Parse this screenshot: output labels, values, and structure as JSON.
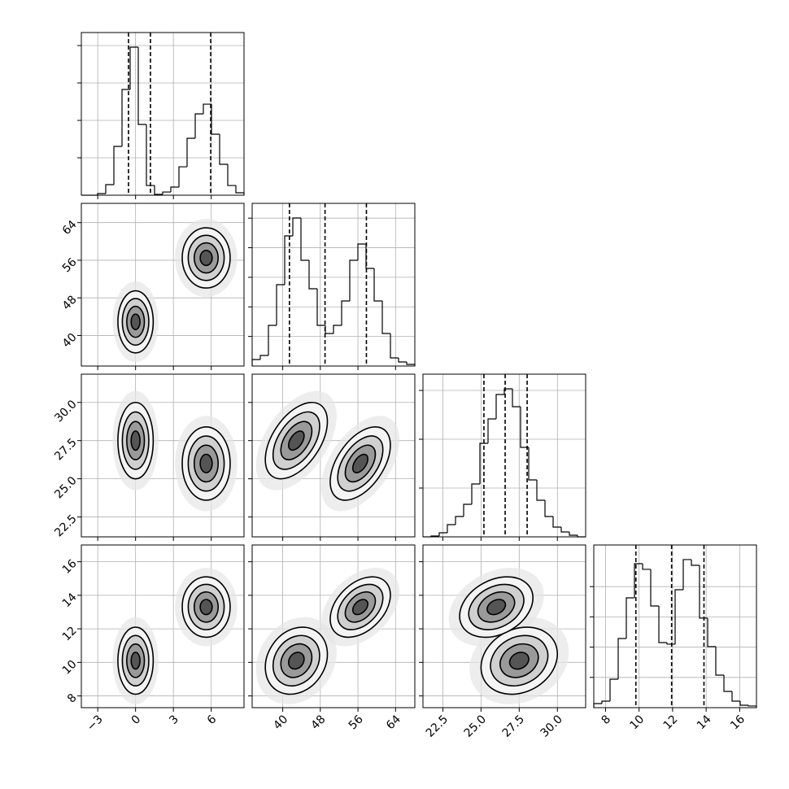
{
  "chart_data": {
    "type": "corner",
    "grid": true,
    "color": "#000000",
    "params": [
      {
        "lim": [
          -4.3,
          8.6
        ],
        "ticks": [
          {
            "value": -3,
            "label": "−3"
          },
          0,
          3,
          6
        ]
      },
      {
        "lim": [
          33.5,
          68.1
        ],
        "ticks": [
          40,
          48,
          56,
          64
        ]
      },
      {
        "lim": [
          21.2,
          31.85
        ],
        "ticks": [
          {
            "value": 22.5,
            "label": "22.5"
          },
          {
            "value": 25,
            "label": "25.0"
          },
          {
            "value": 27.5,
            "label": "27.5"
          },
          {
            "value": 30,
            "label": "30.0"
          }
        ]
      },
      {
        "lim": [
          7.3,
          17.0
        ],
        "ticks": [
          8,
          10,
          12,
          14,
          16
        ]
      }
    ],
    "histograms": [
      {
        "bins": [
          -4.3,
          -3.655,
          -3.01,
          -2.365,
          -1.72,
          -1.075,
          -0.43,
          0.215,
          0.86,
          1.505,
          2.15,
          2.795,
          3.44,
          4.085,
          4.73,
          5.375,
          6.02,
          6.665,
          7.31,
          7.955,
          8.6
        ],
        "counts": [
          0,
          0,
          22,
          141,
          652,
          1413,
          1978,
          946,
          130,
          11,
          43,
          109,
          380,
          761,
          1087,
          1217,
          815,
          413,
          130,
          33
        ],
        "ylim": [
          0,
          2174
        ],
        "yticks": [
          500,
          1000,
          1500,
          2000
        ],
        "quantiles": [
          -0.56,
          1.18,
          5.96
        ]
      },
      {
        "bins": [
          33.5,
          35.23,
          36.96,
          38.69,
          40.42,
          42.15,
          43.88,
          45.61,
          47.34,
          49.07,
          50.8,
          52.53,
          54.26,
          55.99,
          57.72,
          59.45,
          61.18,
          62.91,
          64.64,
          66.37,
          68.1
        ],
        "counts": [
          88,
          143,
          550,
          1100,
          1760,
          2002,
          1430,
          1045,
          550,
          440,
          550,
          880,
          1430,
          1650,
          1320,
          880,
          440,
          110,
          55,
          22
        ],
        "ylim": [
          0,
          2200
        ],
        "yticks": [
          400,
          800,
          1200,
          1600,
          2000
        ],
        "quantiles": [
          41.43,
          49.0,
          57.8
        ]
      },
      {
        "bins": [
          21.2,
          21.7325,
          22.265,
          22.7975,
          23.33,
          23.8625,
          24.395,
          24.9275,
          25.46,
          25.9925,
          26.525,
          27.0575,
          27.59,
          28.1225,
          28.655,
          29.1875,
          29.72,
          30.2525,
          30.785,
          31.3175,
          31.85
        ],
        "counts": [
          0,
          10,
          50,
          150,
          250,
          400,
          650,
          1150,
          1450,
          1750,
          1820,
          1600,
          1100,
          700,
          450,
          250,
          120,
          60,
          20,
          0
        ],
        "ylim": [
          0,
          2000
        ],
        "yticks": [
          600,
          1200,
          1800
        ],
        "quantiles": [
          25.19,
          26.58,
          28.02
        ]
      },
      {
        "bins": [
          7.3,
          7.785,
          8.27,
          8.755,
          9.24,
          9.725,
          10.21,
          10.695,
          11.18,
          11.665,
          12.15,
          12.635,
          13.12,
          13.605,
          14.09,
          14.575,
          15.06,
          15.545,
          16.03,
          16.515,
          17.0
        ],
        "counts": [
          54,
          86,
          376,
          914,
          1451,
          1903,
          1828,
          1344,
          860,
          839,
          1559,
          1957,
          1881,
          1183,
          806,
          430,
          215,
          86,
          32,
          22
        ],
        "ylim": [
          0,
          2150
        ],
        "yticks": [
          400,
          800,
          1200,
          1600
        ],
        "quantiles": [
          9.81,
          11.94,
          13.87
        ]
      }
    ],
    "panels": [
      {
        "x_param": 0,
        "y_param": 1,
        "clusters": [
          {
            "x": 0,
            "y": 42.9,
            "sx": 0.7,
            "sy": 3.3,
            "rho": 0
          },
          {
            "x": 5.6,
            "y": 56.5,
            "sx": 0.95,
            "sy": 3.2,
            "rho": 0
          }
        ]
      },
      {
        "x_param": 0,
        "y_param": 2,
        "clusters": [
          {
            "x": 0,
            "y": 27.5,
            "sx": 0.7,
            "sy": 1.25,
            "rho": 0
          },
          {
            "x": 5.6,
            "y": 26.0,
            "sx": 0.95,
            "sy": 1.2,
            "rho": 0
          }
        ]
      },
      {
        "x_param": 1,
        "y_param": 2,
        "clusters": [
          {
            "x": 42.9,
            "y": 27.5,
            "sx": 3.3,
            "sy": 1.25,
            "rho": 0.5
          },
          {
            "x": 56.5,
            "y": 26.0,
            "sx": 3.2,
            "sy": 1.2,
            "rho": 0.5
          }
        ]
      },
      {
        "x_param": 0,
        "y_param": 3,
        "clusters": [
          {
            "x": 0,
            "y": 10.1,
            "sx": 0.7,
            "sy": 1.0,
            "rho": 0
          },
          {
            "x": 5.6,
            "y": 13.3,
            "sx": 0.95,
            "sy": 0.9,
            "rho": 0
          }
        ]
      },
      {
        "x_param": 1,
        "y_param": 3,
        "clusters": [
          {
            "x": 42.9,
            "y": 10.1,
            "sx": 3.3,
            "sy": 1.0,
            "rho": 0.2
          },
          {
            "x": 56.5,
            "y": 13.3,
            "sx": 3.2,
            "sy": 0.9,
            "rho": 0.4
          }
        ]
      },
      {
        "x_param": 2,
        "y_param": 3,
        "clusters": [
          {
            "x": 27.5,
            "y": 10.1,
            "sx": 1.25,
            "sy": 1.0,
            "rho": 0.2
          },
          {
            "x": 26.0,
            "y": 13.3,
            "sx": 1.2,
            "sy": 0.9,
            "rho": 0.3
          }
        ]
      }
    ]
  }
}
